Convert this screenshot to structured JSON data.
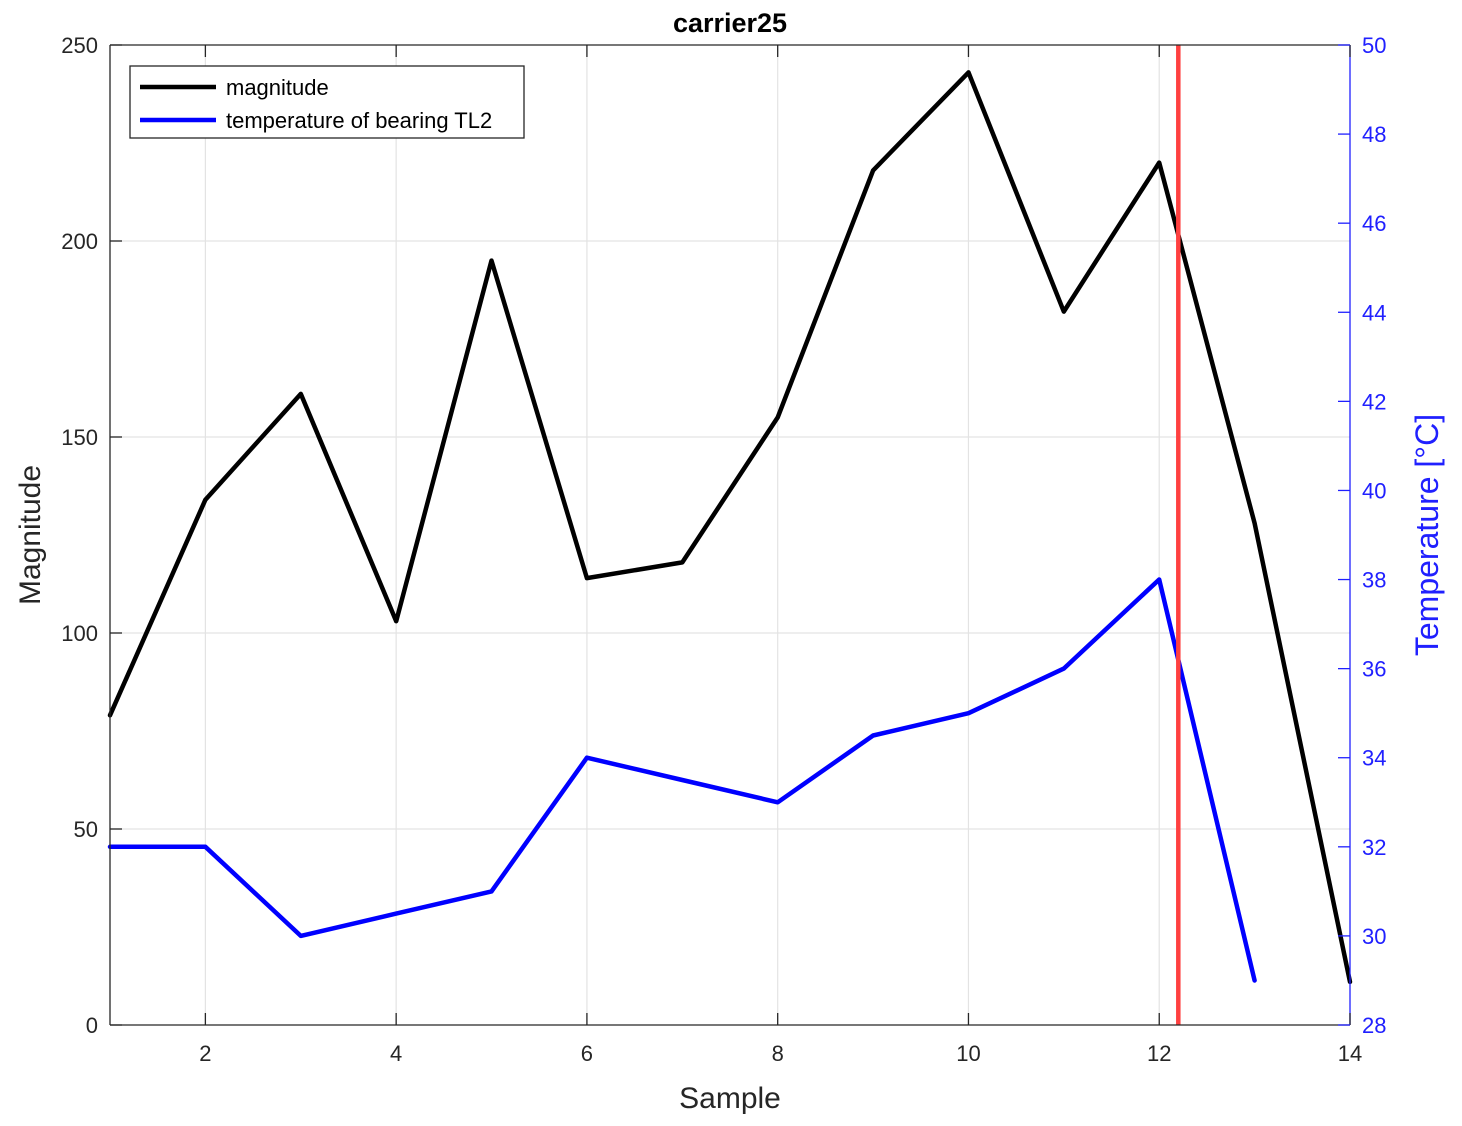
{
  "chart_data": {
    "type": "line",
    "title": "carrier25",
    "xlabel": "Sample",
    "ylabel_left": "Magnitude",
    "ylabel_right": "Temperature [°C]",
    "xlim": [
      1,
      14
    ],
    "ylim_left": [
      0,
      250
    ],
    "ylim_right": [
      28,
      50
    ],
    "xticks": [
      2,
      4,
      6,
      8,
      10,
      12,
      14
    ],
    "yticks_left": [
      0,
      50,
      100,
      150,
      200,
      250
    ],
    "yticks_right": [
      28,
      30,
      32,
      34,
      36,
      38,
      40,
      42,
      44,
      46,
      48,
      50
    ],
    "grid": true,
    "legend_location": "top-left",
    "series": [
      {
        "name": "magnitude",
        "axis": "left",
        "color": "#000000",
        "x": [
          1,
          2,
          3,
          4,
          5,
          6,
          7,
          8,
          9,
          10,
          11,
          12,
          13,
          14
        ],
        "values": [
          79,
          134,
          161,
          103,
          195,
          114,
          118,
          155,
          218,
          243,
          182,
          220,
          128,
          11
        ]
      },
      {
        "name": "temperature of bearing TL2",
        "axis": "right",
        "color": "#0000ff",
        "x": [
          1,
          2,
          3,
          4,
          5,
          6,
          7,
          8,
          9,
          10,
          11,
          12,
          13
        ],
        "values": [
          32,
          32,
          30,
          30.5,
          31,
          34,
          33.5,
          33,
          34.5,
          35,
          36,
          38,
          29
        ]
      }
    ],
    "vertical_line": {
      "x": 12.2,
      "color": "#ff4040"
    }
  }
}
